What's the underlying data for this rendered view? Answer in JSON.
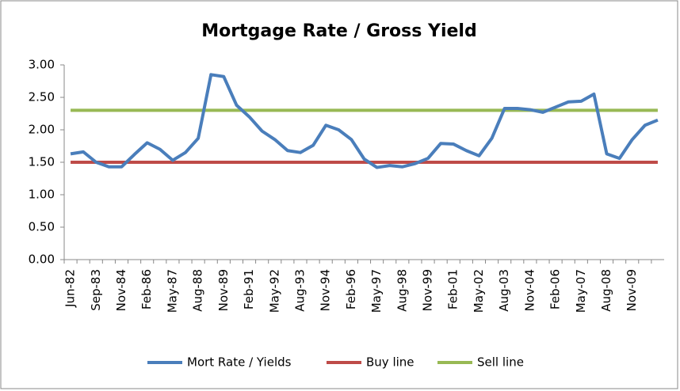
{
  "chart_data": {
    "type": "line",
    "title": "Mortgage Rate / Gross Yield",
    "categories": [
      "Jun-82",
      null,
      "Sep-83",
      null,
      "Nov-84",
      null,
      "Feb-86",
      null,
      "May-87",
      null,
      "Aug-88",
      null,
      "Nov-89",
      null,
      "Feb-91",
      null,
      "May-92",
      null,
      "Aug-93",
      null,
      "Nov-94",
      null,
      "Feb-96",
      null,
      "May-97",
      null,
      "Aug-98",
      null,
      "Nov-99",
      null,
      "Feb-01",
      null,
      "May-02",
      null,
      "Aug-03",
      null,
      "Nov-04",
      null,
      "Feb-06",
      null,
      "May-07",
      null,
      "Aug-08",
      null,
      "Nov-09",
      null,
      null
    ],
    "series": [
      {
        "name": "Mort Rate / Yields",
        "color": "#4a7ebb",
        "values": [
          1.63,
          1.66,
          1.5,
          1.43,
          1.43,
          1.62,
          1.8,
          1.7,
          1.53,
          1.65,
          1.87,
          2.85,
          2.82,
          2.38,
          2.2,
          1.98,
          1.85,
          1.68,
          1.65,
          1.76,
          2.07,
          2.0,
          1.85,
          1.55,
          1.42,
          1.45,
          1.43,
          1.48,
          1.56,
          1.79,
          1.78,
          1.68,
          1.6,
          1.87,
          2.33,
          2.33,
          2.31,
          2.27,
          2.35,
          2.43,
          2.44,
          2.55,
          1.63,
          1.56,
          1.85,
          2.07,
          2.15
        ]
      },
      {
        "name": "Buy line",
        "color": "#be4b48",
        "values": [
          1.5,
          1.5,
          1.5,
          1.5,
          1.5,
          1.5,
          1.5,
          1.5,
          1.5,
          1.5,
          1.5,
          1.5,
          1.5,
          1.5,
          1.5,
          1.5,
          1.5,
          1.5,
          1.5,
          1.5,
          1.5,
          1.5,
          1.5,
          1.5,
          1.5,
          1.5,
          1.5,
          1.5,
          1.5,
          1.5,
          1.5,
          1.5,
          1.5,
          1.5,
          1.5,
          1.5,
          1.5,
          1.5,
          1.5,
          1.5,
          1.5,
          1.5,
          1.5,
          1.5,
          1.5,
          1.5,
          1.5
        ]
      },
      {
        "name": "Sell line",
        "color": "#98b954",
        "values": [
          2.3,
          2.3,
          2.3,
          2.3,
          2.3,
          2.3,
          2.3,
          2.3,
          2.3,
          2.3,
          2.3,
          2.3,
          2.3,
          2.3,
          2.3,
          2.3,
          2.3,
          2.3,
          2.3,
          2.3,
          2.3,
          2.3,
          2.3,
          2.3,
          2.3,
          2.3,
          2.3,
          2.3,
          2.3,
          2.3,
          2.3,
          2.3,
          2.3,
          2.3,
          2.3,
          2.3,
          2.3,
          2.3,
          2.3,
          2.3,
          2.3,
          2.3,
          2.3,
          2.3,
          2.3,
          2.3,
          2.3
        ]
      }
    ],
    "ylim": [
      0,
      3
    ],
    "yticks": [
      {
        "value": 0,
        "label": "0.00"
      },
      {
        "value": 0.5,
        "label": "0.50"
      },
      {
        "value": 1,
        "label": "1.00"
      },
      {
        "value": 1.5,
        "label": "1.50"
      },
      {
        "value": 2,
        "label": "2.00"
      },
      {
        "value": 2.5,
        "label": "2.50"
      },
      {
        "value": 3,
        "label": "3.00"
      }
    ],
    "grid": false,
    "legend": "bottom"
  }
}
